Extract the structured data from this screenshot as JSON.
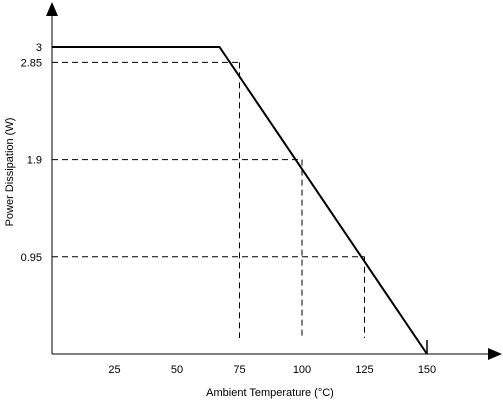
{
  "chart_data": {
    "type": "line",
    "xlabel": "Ambient Temperature (°C)",
    "ylabel": "Power Dissipation (W)",
    "xlim": [
      0,
      150
    ],
    "ylim": [
      0,
      3
    ],
    "x_ticks": [
      {
        "value": 25,
        "label": "25"
      },
      {
        "value": 50,
        "label": "50"
      },
      {
        "value": 75,
        "label": "75"
      },
      {
        "value": 100,
        "label": "100"
      },
      {
        "value": 125,
        "label": "125"
      },
      {
        "value": 150,
        "label": "150"
      }
    ],
    "y_ticks": [
      {
        "value": 0.95,
        "label": "0.95"
      },
      {
        "value": 1.9,
        "label": "1.9"
      },
      {
        "value": 2.85,
        "label": "2.85"
      },
      {
        "value": 3,
        "label": "3"
      }
    ],
    "series": [
      {
        "x": [
          0,
          67,
          150
        ],
        "y": [
          3,
          3,
          0
        ]
      }
    ],
    "reference_lines": [
      {
        "x": 75,
        "y": 2.85
      },
      {
        "x": 100,
        "y": 1.9
      },
      {
        "x": 125,
        "y": 0.95
      }
    ],
    "grid": false,
    "legend": "none"
  }
}
